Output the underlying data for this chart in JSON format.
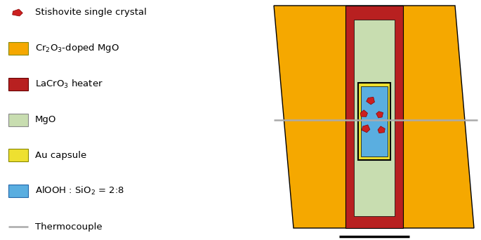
{
  "colors": {
    "orange_mgo": "#F5A800",
    "dark_red_heater": "#B82020",
    "light_green_mgo": "#C8DDB0",
    "yellow_au": "#EEE030",
    "blue_alooh": "#5AAEE0",
    "gray_tc": "#AAAAAA",
    "red_crystal": "#CC2020",
    "black": "#000000",
    "white": "#FFFFFF"
  },
  "legend_items": [
    {
      "label": "Stishovite single crystal",
      "type": "crystal",
      "color": "#CC2020"
    },
    {
      "label": "Cr$_2$O$_3$-doped MgO",
      "type": "rect",
      "color": "#F5A800",
      "edgecolor": "#888800"
    },
    {
      "label": "LaCrO$_3$ heater",
      "type": "rect",
      "color": "#B82020",
      "edgecolor": "#660000"
    },
    {
      "label": "MgO",
      "type": "rect",
      "color": "#C8DDB0",
      "edgecolor": "#888888"
    },
    {
      "label": "Au capsule",
      "type": "rect",
      "color": "#EEE030",
      "edgecolor": "#888800"
    },
    {
      "label": "AlOOH : SiO$_2$ = 2:8",
      "type": "rect",
      "color": "#5AAEE0",
      "edgecolor": "#2266AA"
    },
    {
      "label": "Thermocouple",
      "type": "line",
      "color": "#AAAAAA"
    }
  ]
}
